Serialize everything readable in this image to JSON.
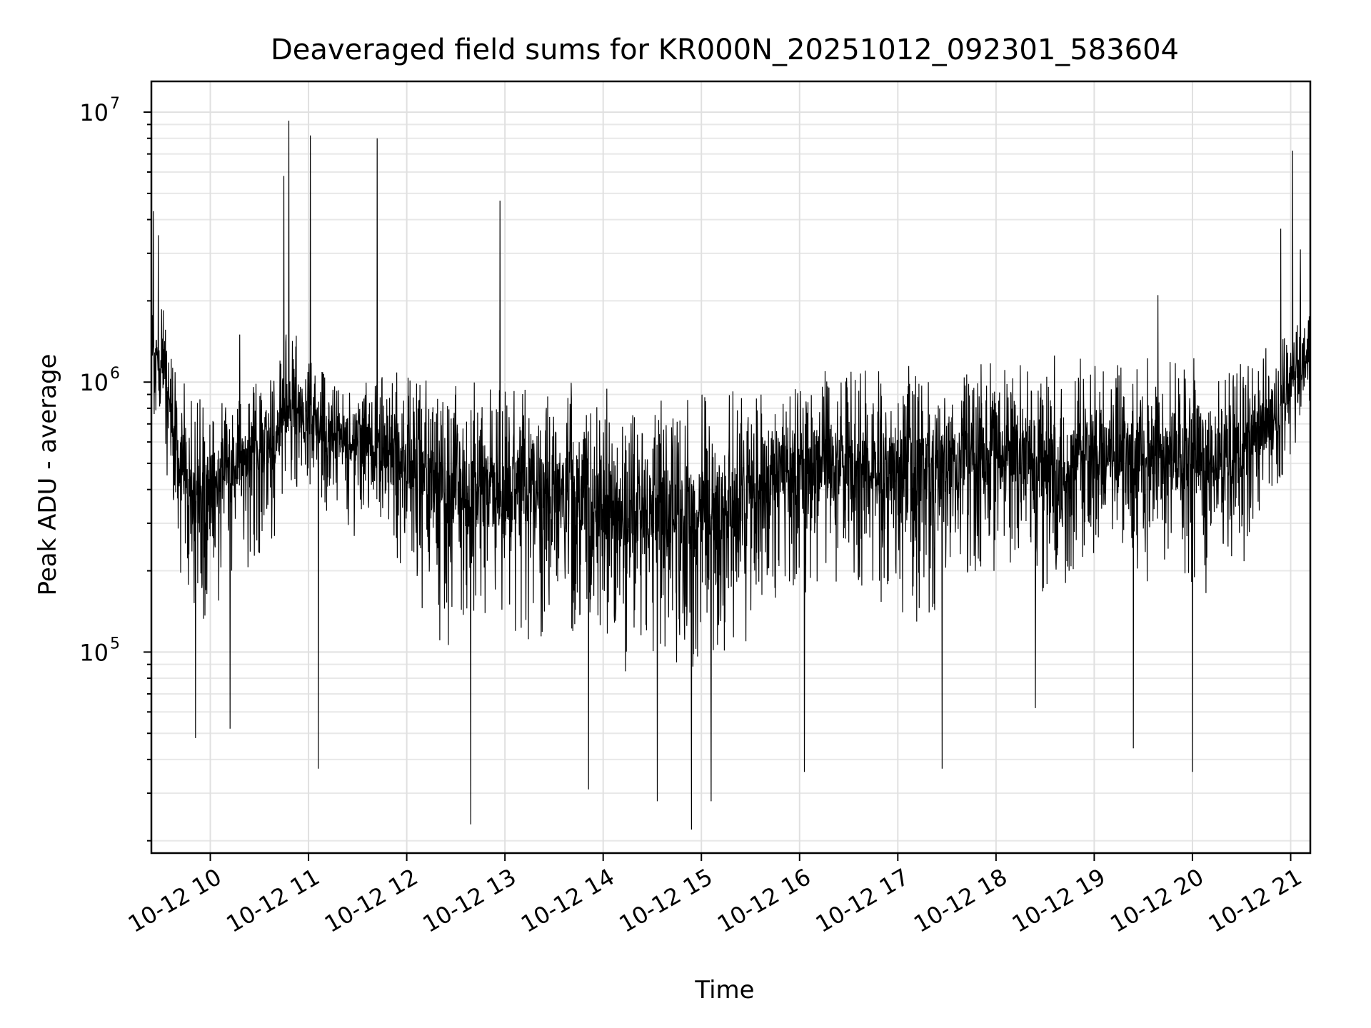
{
  "chart_data": {
    "type": "line",
    "title": "Deaveraged field sums for KR000N_20251012_092301_583604",
    "xlabel": "Time",
    "ylabel": "Peak ADU - average",
    "yscale": "log",
    "ylim": [
      18000,
      13000000
    ],
    "xlim_hours": [
      9.4,
      21.2
    ],
    "grid": true,
    "x_tick_hours": [
      10,
      11,
      12,
      13,
      14,
      15,
      16,
      17,
      18,
      19,
      20,
      21
    ],
    "x_tick_labels": [
      "10-12 10",
      "10-12 11",
      "10-12 12",
      "10-12 13",
      "10-12 14",
      "10-12 15",
      "10-12 16",
      "10-12 17",
      "10-12 18",
      "10-12 19",
      "10-12 20",
      "10-12 21"
    ],
    "y_ticks": [
      {
        "value": 100000,
        "base": "10",
        "exp": "5"
      },
      {
        "value": 1000000,
        "base": "10",
        "exp": "6"
      },
      {
        "value": 10000000,
        "base": "10",
        "exp": "7"
      }
    ],
    "series": [
      {
        "name": "deaveraged field sum",
        "color": "#000000",
        "envelope_hours": [
          9.4,
          9.55,
          9.7,
          9.85,
          10.0,
          10.2,
          10.4,
          10.6,
          10.8,
          11.0,
          11.2,
          11.5,
          11.8,
          12.1,
          12.4,
          12.7,
          13.0,
          13.3,
          13.6,
          13.9,
          14.2,
          14.5,
          14.8,
          15.1,
          15.4,
          15.7,
          16.0,
          16.3,
          16.6,
          16.9,
          17.2,
          17.5,
          17.8,
          18.1,
          18.4,
          18.7,
          19.0,
          19.3,
          19.6,
          19.9,
          20.2,
          20.5,
          20.8,
          21.0,
          21.2
        ],
        "envelope_high": [
          2400000,
          1900000,
          1200000,
          1000000,
          1050000,
          1100000,
          1100000,
          1150000,
          1700000,
          1300000,
          1200000,
          1150000,
          1200000,
          1150000,
          1100000,
          1100000,
          1150000,
          1100000,
          1050000,
          1000000,
          1000000,
          980000,
          950000,
          950000,
          1000000,
          1100000,
          1150000,
          1200000,
          1200000,
          1200000,
          1250000,
          1250000,
          1250000,
          1300000,
          1300000,
          1250000,
          1300000,
          1300000,
          1300000,
          1300000,
          1250000,
          1300000,
          1400000,
          1700000,
          2000000
        ],
        "envelope_low": [
          600000,
          450000,
          150000,
          110000,
          120000,
          180000,
          200000,
          220000,
          300000,
          350000,
          300000,
          250000,
          220000,
          150000,
          100000,
          90000,
          100000,
          100000,
          90000,
          85000,
          80000,
          80000,
          75000,
          80000,
          100000,
          140000,
          150000,
          160000,
          150000,
          140000,
          120000,
          140000,
          180000,
          170000,
          130000,
          160000,
          200000,
          180000,
          170000,
          150000,
          160000,
          200000,
          280000,
          500000,
          800000
        ],
        "peaks": [
          {
            "hour": 9.42,
            "value": 4300000
          },
          {
            "hour": 9.47,
            "value": 3500000
          },
          {
            "hour": 10.3,
            "value": 1500000
          },
          {
            "hour": 10.75,
            "value": 5800000
          },
          {
            "hour": 10.8,
            "value": 9300000
          },
          {
            "hour": 11.02,
            "value": 8200000
          },
          {
            "hour": 11.7,
            "value": 8000000
          },
          {
            "hour": 12.95,
            "value": 4700000
          },
          {
            "hour": 19.65,
            "value": 2100000
          },
          {
            "hour": 20.9,
            "value": 3700000
          },
          {
            "hour": 21.02,
            "value": 7200000
          },
          {
            "hour": 21.1,
            "value": 3100000
          }
        ],
        "dips": [
          {
            "hour": 9.85,
            "value": 48000
          },
          {
            "hour": 10.2,
            "value": 52000
          },
          {
            "hour": 11.1,
            "value": 37000
          },
          {
            "hour": 12.65,
            "value": 23000
          },
          {
            "hour": 13.85,
            "value": 31000
          },
          {
            "hour": 14.55,
            "value": 28000
          },
          {
            "hour": 14.9,
            "value": 22000
          },
          {
            "hour": 15.1,
            "value": 28000
          },
          {
            "hour": 16.05,
            "value": 36000
          },
          {
            "hour": 17.45,
            "value": 37000
          },
          {
            "hour": 18.4,
            "value": 62000
          },
          {
            "hour": 19.4,
            "value": 44000
          },
          {
            "hour": 20.0,
            "value": 36000
          }
        ]
      }
    ]
  }
}
